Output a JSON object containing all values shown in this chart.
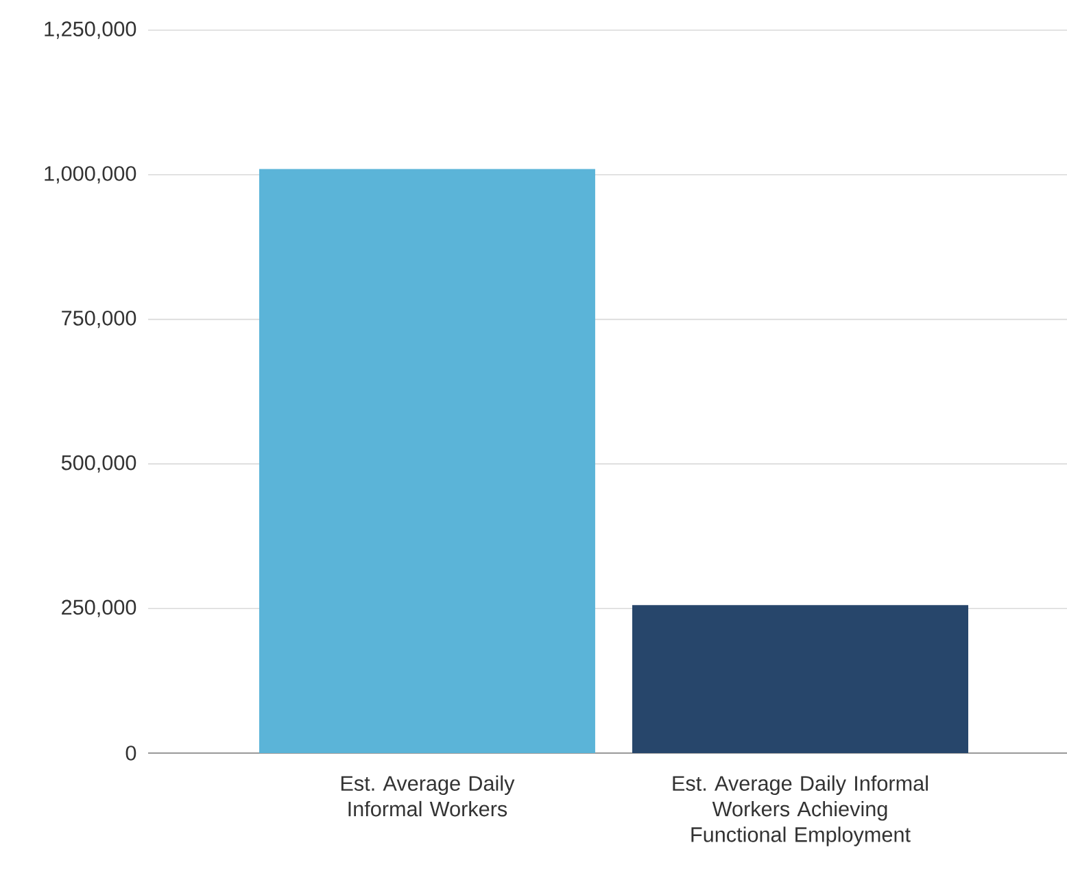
{
  "chart_data": {
    "type": "bar",
    "categories": [
      "Est. Average Daily Informal Workers",
      "Est. Average Daily Informal Workers Achieving Functional Employment"
    ],
    "values": [
      1010000,
      256000
    ],
    "colors": [
      "#5bb4d8",
      "#27466b"
    ],
    "ylim": [
      0,
      1250000
    ],
    "yticks": [
      {
        "value": 0,
        "label": "0"
      },
      {
        "value": 250000,
        "label": "250,000"
      },
      {
        "value": 500000,
        "label": "500,000"
      },
      {
        "value": 750000,
        "label": "750,000"
      },
      {
        "value": 1000000,
        "label": "1,000,000"
      },
      {
        "value": 1250000,
        "label": "1,250,000"
      }
    ],
    "grid": "y"
  }
}
